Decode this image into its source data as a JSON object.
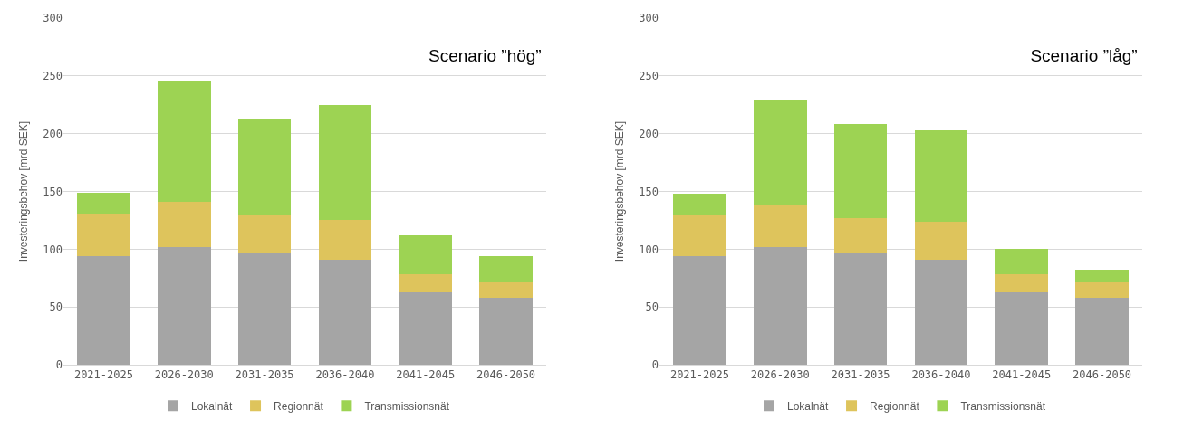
{
  "chart_data": [
    {
      "type": "bar",
      "stacked": true,
      "title": "Scenario ”hög”",
      "ylabel": "Investeringsbehov [mrd SEK]",
      "categories": [
        "2021-2025",
        "2026-2030",
        "2031-2035",
        "2036-2040",
        "2041-2045",
        "2046-2050"
      ],
      "series": [
        {
          "name": "Lokalnät",
          "color": "#a5a5a5",
          "values": [
            94,
            102,
            96,
            91,
            63,
            58
          ]
        },
        {
          "name": "Regionnät",
          "color": "#dec45c",
          "values": [
            37,
            39,
            33,
            34,
            15,
            14
          ]
        },
        {
          "name": "Transmissionsnät",
          "color": "#9dd353",
          "values": [
            18,
            104,
            84,
            100,
            34,
            22
          ]
        }
      ],
      "ylim": [
        0,
        300
      ],
      "yticks": [
        0,
        50,
        100,
        150,
        200,
        250,
        300
      ],
      "grid": "y",
      "legend": "bottom"
    },
    {
      "type": "bar",
      "stacked": true,
      "title": "Scenario ”låg”",
      "ylabel": "Investeringsbehov [mrd SEK]",
      "categories": [
        "2021-2025",
        "2026-2030",
        "2031-2035",
        "2036-2040",
        "2041-2045",
        "2046-2050"
      ],
      "series": [
        {
          "name": "Lokalnät",
          "color": "#a5a5a5",
          "values": [
            94,
            102,
            96,
            91,
            63,
            58
          ]
        },
        {
          "name": "Regionnät",
          "color": "#dec45c",
          "values": [
            36,
            37,
            31,
            33,
            15,
            14
          ]
        },
        {
          "name": "Transmissionsnät",
          "color": "#9dd353",
          "values": [
            18,
            90,
            81,
            79,
            22,
            10
          ]
        }
      ],
      "ylim": [
        0,
        300
      ],
      "yticks": [
        0,
        50,
        100,
        150,
        200,
        250,
        300
      ],
      "grid": "y",
      "legend": "bottom"
    }
  ]
}
